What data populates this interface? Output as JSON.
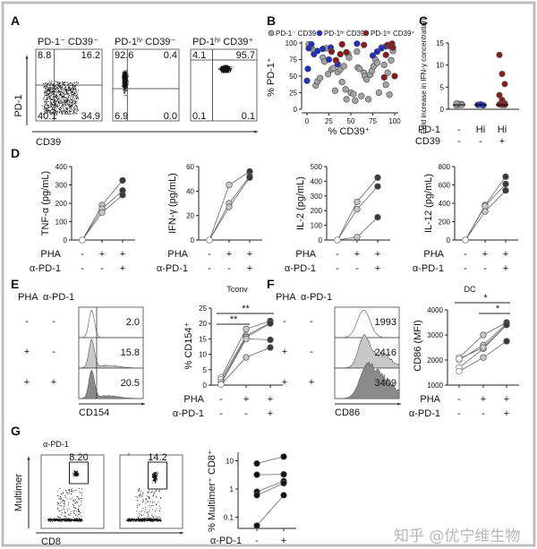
{
  "colors": {
    "gray": "#a3a3a3",
    "blue": "#1f2fbf",
    "red": "#8b1a1a",
    "dark": "#3a3a3a",
    "light": "#c8c8c8",
    "white": "#ffffff"
  },
  "panels": {
    "A": "A",
    "B": "B",
    "C": "C",
    "D": "D",
    "E": "E",
    "F": "F",
    "G": "G"
  },
  "A": {
    "titles": [
      "PD-1⁻ CD39⁻",
      "PD-1ʰⁱ CD39⁻",
      "PD-1ʰⁱ CD39⁺"
    ],
    "quadrants": [
      [
        "8.8",
        "16.2",
        "40.1",
        "34.9"
      ],
      [
        "92.6",
        "0.4",
        "6.9",
        "0.0"
      ],
      [
        "4.1",
        "95.7",
        "0.1",
        "0.1"
      ]
    ],
    "ylabel": "PD-1",
    "xlabel": "CD39"
  },
  "chart_data": [
    {
      "type": "scatter",
      "panel": "B",
      "xlabel": "% CD39⁺",
      "ylabel": "% PD-1⁺",
      "xlim": [
        0,
        100
      ],
      "ylim": [
        0,
        100
      ],
      "xticks": [
        "0",
        "25",
        "50",
        "75",
        "100"
      ],
      "yticks": [
        "0",
        "25",
        "50",
        "75",
        "100"
      ],
      "legend": "top",
      "series": [
        {
          "name": "PD-1⁻ CD39⁻",
          "color": "gray",
          "points": [
            [
              2,
              98
            ],
            [
              5,
              93
            ],
            [
              8,
              88
            ],
            [
              10,
              36
            ],
            [
              12,
              42
            ],
            [
              15,
              47
            ],
            [
              18,
              78
            ],
            [
              20,
              72
            ],
            [
              22,
              92
            ],
            [
              24,
              53
            ],
            [
              28,
              60
            ],
            [
              30,
              62
            ],
            [
              32,
              28
            ],
            [
              35,
              56
            ],
            [
              38,
              60
            ],
            [
              40,
              41
            ],
            [
              42,
              65
            ],
            [
              44,
              30
            ],
            [
              45,
              15
            ],
            [
              47,
              83
            ],
            [
              48,
              78
            ],
            [
              50,
              25
            ],
            [
              53,
              23
            ],
            [
              55,
              13
            ],
            [
              57,
              87
            ],
            [
              58,
              63
            ],
            [
              60,
              61
            ],
            [
              62,
              20
            ],
            [
              65,
              55
            ],
            [
              66,
              50
            ],
            [
              68,
              45
            ],
            [
              70,
              15
            ],
            [
              72,
              52
            ],
            [
              74,
              58
            ],
            [
              76,
              65
            ],
            [
              78,
              75
            ],
            [
              80,
              70
            ],
            [
              82,
              25
            ],
            [
              85,
              93
            ],
            [
              88,
              67
            ],
            [
              90,
              37
            ],
            [
              92,
              55
            ],
            [
              94,
              22
            ],
            [
              96,
              74
            ],
            [
              98,
              88
            ]
          ]
        },
        {
          "name": "PD-1ʰⁱ CD39⁻",
          "color": "blue",
          "points": [
            [
              0,
              43
            ],
            [
              1,
              61
            ],
            [
              2,
              92
            ],
            [
              5,
              98
            ],
            [
              8,
              83
            ],
            [
              12,
              88
            ],
            [
              18,
              91
            ],
            [
              25,
              75
            ],
            [
              27,
              93
            ],
            [
              35,
              68
            ],
            [
              57,
              99
            ],
            [
              75,
              81
            ],
            [
              80,
              87
            ],
            [
              85,
              92
            ],
            [
              90,
              95
            ]
          ]
        },
        {
          "name": "PD-1ʰⁱ CD39⁺",
          "color": "red",
          "points": [
            [
              28,
              87
            ],
            [
              33,
              74
            ],
            [
              38,
              83
            ],
            [
              40,
              98
            ],
            [
              45,
              86
            ],
            [
              65,
              97
            ],
            [
              88,
              48
            ],
            [
              90,
              82
            ],
            [
              92,
              97
            ],
            [
              95,
              95
            ],
            [
              97,
              99
            ],
            [
              98,
              93
            ],
            [
              100,
              50
            ]
          ]
        }
      ]
    },
    {
      "type": "scatter",
      "panel": "C",
      "ylabel": "Fold increase in IFN-γ concentration",
      "ylim": [
        0,
        15
      ],
      "yticks": [
        "0",
        "5",
        "10",
        "15"
      ],
      "rows": [
        {
          "label": "PD-1",
          "values": [
            "-",
            "Hi",
            "Hi"
          ]
        },
        {
          "label": "CD39",
          "values": [
            "-",
            "-",
            "+"
          ]
        }
      ],
      "groups": [
        {
          "color": "gray",
          "values": [
            1,
            1,
            1.1,
            0.9,
            1.2,
            1,
            1.3
          ]
        },
        {
          "color": "blue",
          "values": [
            1,
            1.1,
            0.9,
            1,
            1.05
          ]
        },
        {
          "color": "red",
          "values": [
            12.3,
            8,
            5.7,
            3.2,
            2.1,
            1.3,
            1.1,
            1,
            1
          ]
        }
      ]
    },
    {
      "type": "line",
      "panel": "D",
      "charts": [
        {
          "ylabel": "TNF-α (pg/mL)",
          "ylim": [
            0,
            400
          ],
          "yticks": [
            "0",
            "100",
            "200",
            "300",
            "400"
          ],
          "donors": [
            [
              0,
              190,
              325
            ],
            [
              0,
              170,
              270
            ],
            [
              0,
              150,
              245
            ]
          ]
        },
        {
          "ylabel": "IFN-γ (pg/mL)",
          "ylim": [
            0,
            60
          ],
          "yticks": [
            "0",
            "20",
            "40",
            "60"
          ],
          "donors": [
            [
              0,
              45,
              56
            ],
            [
              0,
              30,
              52
            ],
            [
              0,
              27,
              51
            ]
          ]
        },
        {
          "ylabel": "IL-2 (pg/mL)",
          "ylim": [
            0,
            500
          ],
          "yticks": [
            "0",
            "100",
            "200",
            "300",
            "400",
            "500"
          ],
          "donors": [
            [
              0,
              260,
              425
            ],
            [
              0,
              210,
              365
            ],
            [
              0,
              20,
              155
            ]
          ]
        },
        {
          "ylabel": "IL-12 (pg/mL)",
          "ylim": [
            0,
            800
          ],
          "yticks": [
            "0",
            "200",
            "400",
            "600",
            "800"
          ],
          "donors": [
            [
              0,
              380,
              690
            ],
            [
              0,
              370,
              610
            ],
            [
              0,
              310,
              540
            ]
          ]
        }
      ],
      "rows": [
        {
          "label": "PHA",
          "values": [
            "-",
            "+",
            "+"
          ]
        },
        {
          "label": "α-PD-1",
          "values": [
            "-",
            "-",
            "+"
          ]
        }
      ]
    },
    {
      "type": "line",
      "panel": "E",
      "title": "Tconv",
      "ylabel": "% CD154⁺",
      "ylim": [
        0,
        25
      ],
      "yticks": [
        "0",
        "5",
        "10",
        "15",
        "20",
        "25"
      ],
      "donors": [
        [
          2.5,
          18.2,
          20.8
        ],
        [
          1.8,
          16,
          20.3
        ],
        [
          1,
          15.5,
          20
        ],
        [
          0.5,
          15,
          14.7
        ],
        [
          0.2,
          9,
          12.2
        ]
      ],
      "significance": [
        {
          "from": 0,
          "to": 1,
          "label": "**"
        },
        {
          "from": 0,
          "to": 2,
          "label": "**"
        }
      ],
      "rows": [
        {
          "label": "PHA",
          "values": [
            "-",
            "+",
            "+"
          ]
        },
        {
          "label": "α-PD-1",
          "values": [
            "-",
            "-",
            "+"
          ]
        }
      ]
    },
    {
      "type": "line",
      "panel": "F",
      "title": "DC",
      "ylabel": "CD86 (MFI)",
      "ylim": [
        1000,
        4000
      ],
      "yticks": [
        "1000",
        "2000",
        "3000",
        "4000"
      ],
      "donors": [
        [
          2100,
          3000,
          3500
        ],
        [
          2000,
          2600,
          3450
        ],
        [
          1700,
          2450,
          3400
        ],
        [
          1550,
          2100,
          2750
        ],
        [
          2050,
          2500,
          3400
        ]
      ],
      "significance": [
        {
          "from": 0,
          "to": 2,
          "label": "*"
        },
        {
          "from": 1,
          "to": 2,
          "label": "*"
        }
      ],
      "rows": [
        {
          "label": "PHA",
          "values": [
            "-",
            "+",
            "+"
          ]
        },
        {
          "label": "α-PD-1",
          "values": [
            "-",
            "-",
            "+"
          ]
        }
      ]
    },
    {
      "type": "line",
      "panel": "G",
      "ylabel": "% Multimer⁺ CD8⁺",
      "yscale": "log",
      "ylim": [
        0.04,
        20
      ],
      "yticks": [
        "0.1",
        "1",
        "10"
      ],
      "donors": [
        [
          8,
          14
        ],
        [
          3.2,
          3.3
        ],
        [
          0.8,
          1.9
        ],
        [
          0.6,
          1.6
        ],
        [
          0.05,
          0.6
        ]
      ],
      "rows": [
        {
          "label": "α-PD-1",
          "values": [
            "-",
            "+"
          ]
        }
      ]
    }
  ],
  "E": {
    "header": [
      "PHA",
      "α-PD-1"
    ],
    "conditions": [
      [
        "-",
        "-"
      ],
      [
        "+",
        "-"
      ],
      [
        "+",
        "+"
      ]
    ],
    "values": [
      "2.0",
      "15.8",
      "20.5"
    ],
    "xlabel": "CD154"
  },
  "F": {
    "header": [
      "PHA",
      "α-PD-1"
    ],
    "conditions": [
      [
        "-",
        "-"
      ],
      [
        "+",
        "-"
      ],
      [
        "+",
        "+"
      ]
    ],
    "values": [
      "1993",
      "2416",
      "3409"
    ],
    "xlabel": "CD86"
  },
  "G": {
    "header": "α-PD-1",
    "conditions": [
      "-",
      "+"
    ],
    "gates": [
      "8.20",
      "14.2"
    ],
    "ylabel": "Multimer",
    "xlabel": "CD8"
  },
  "watermark": "知乎 @优宁维生物"
}
